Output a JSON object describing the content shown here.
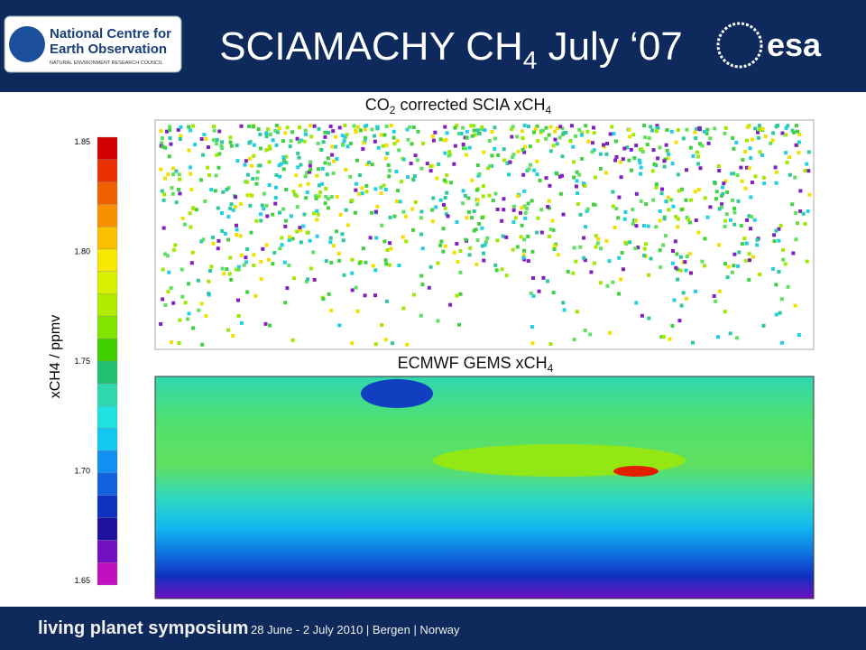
{
  "header": {
    "title": {
      "main": "SCIAMACHY CH",
      "sub": "4",
      "rest": " July ‘07"
    },
    "logo_left": {
      "line1": "National Centre for",
      "line2": "Earth Observation",
      "line3": "NATURAL ENVIRONMENT RESEARCH COUNCIL"
    },
    "logo_right": "esa"
  },
  "panels": [
    {
      "title": {
        "a": "CO",
        "a_sub": "2",
        "b": " corrected SCIA xCH",
        "b_sub": "4"
      }
    },
    {
      "title": {
        "a": "ECMWF GEMS xCH",
        "a_sub": "4"
      }
    }
  ],
  "colorbar": {
    "label": "xCH4 / ppmv",
    "ticks": [
      "1.85",
      "1.80",
      "1.75",
      "1.70",
      "1.65"
    ]
  },
  "footer": {
    "event": "living planet symposium",
    "details": "28 June - 2 July 2010 | Bergen | Norway"
  }
}
